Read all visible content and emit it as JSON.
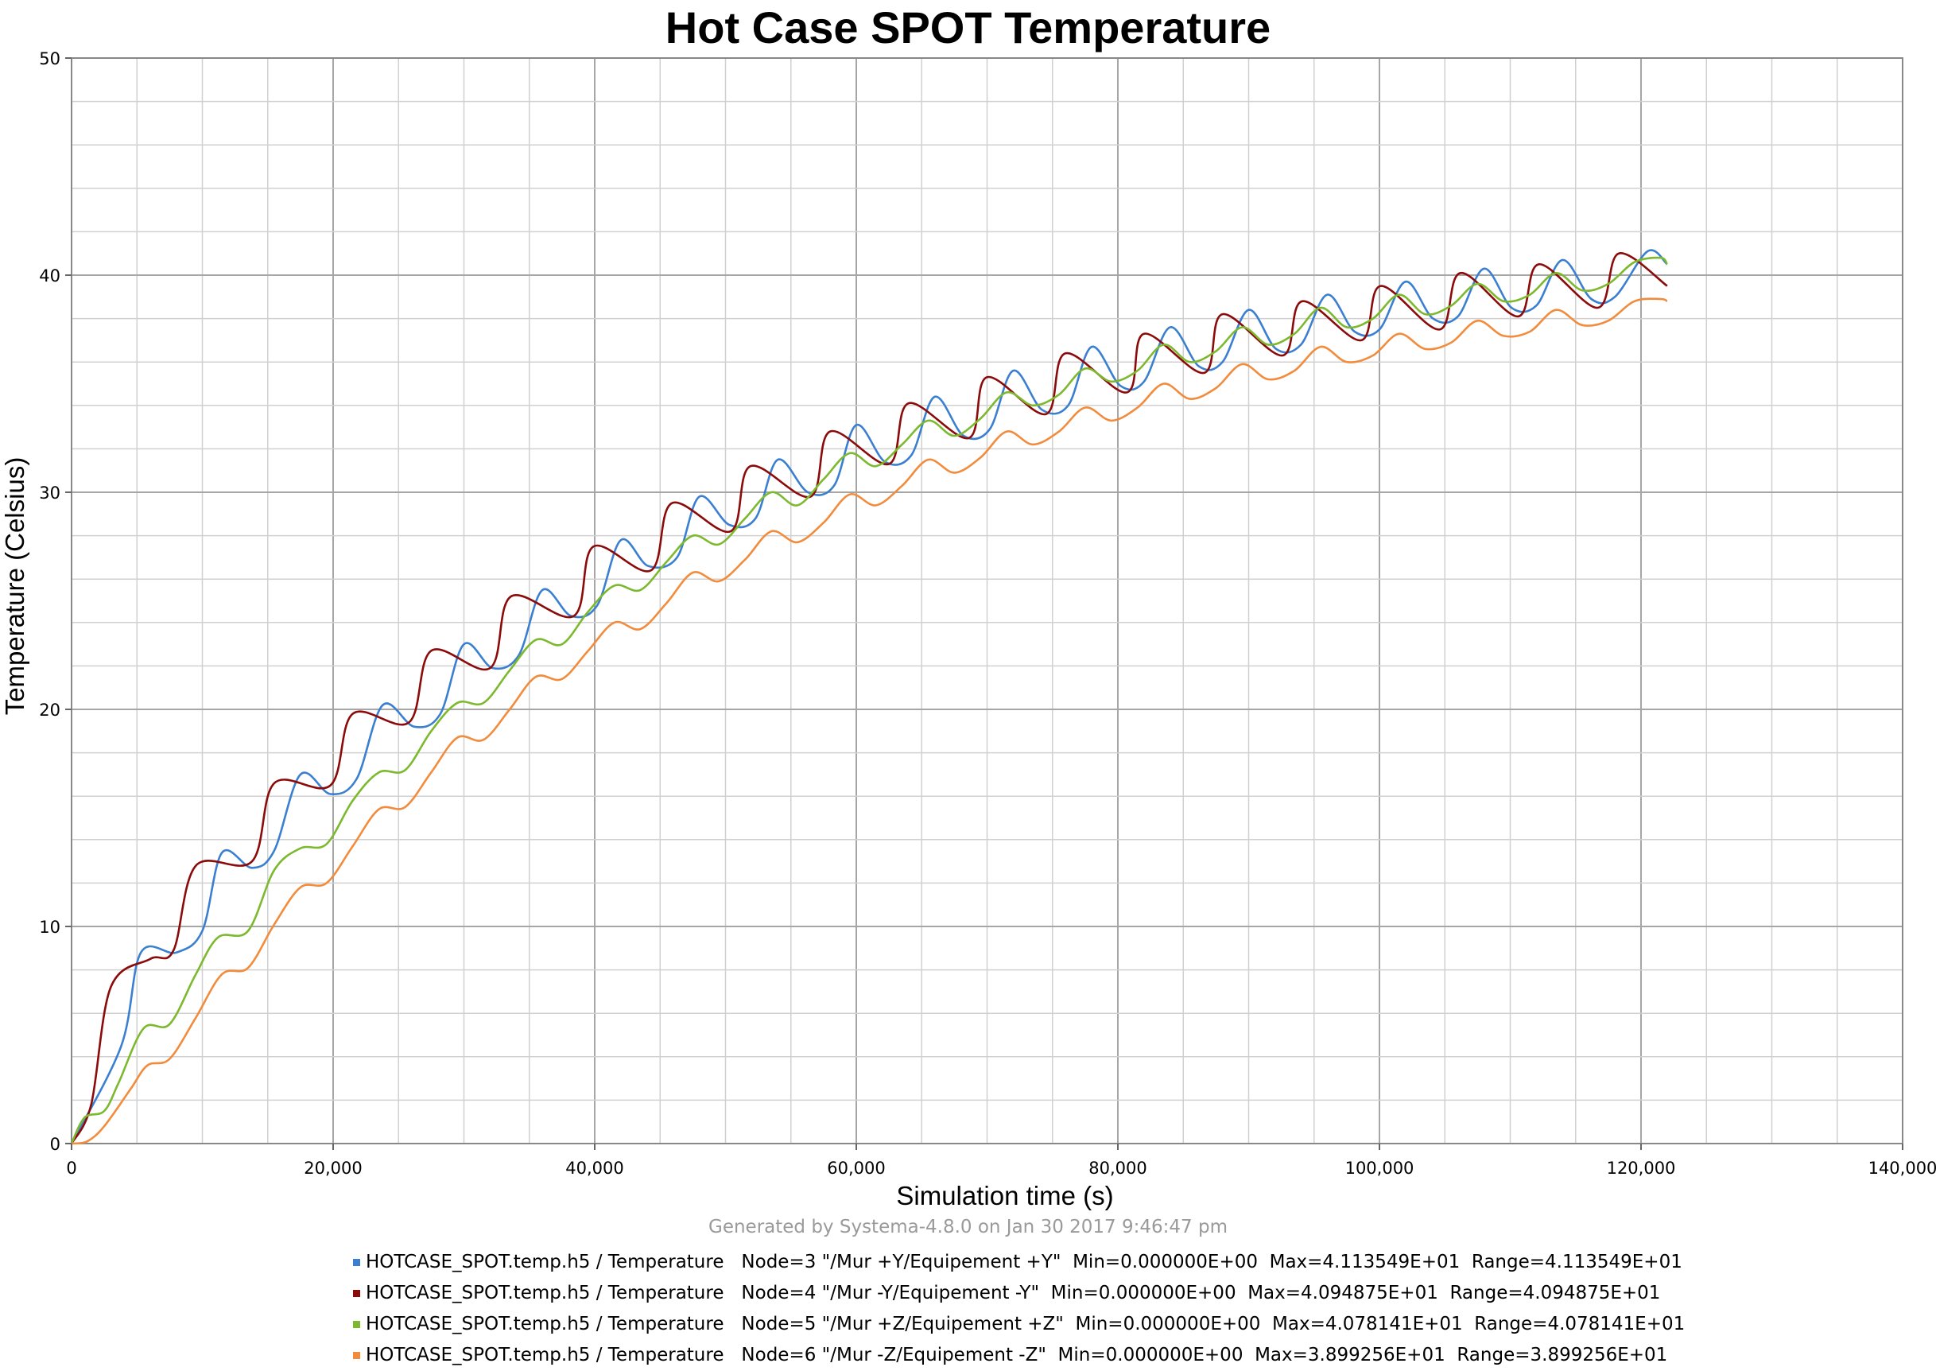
{
  "chart_data": {
    "type": "line",
    "title": "Hot Case SPOT Temperature",
    "xlabel": "Simulation time (s)",
    "ylabel": "Temperature (Celsius)",
    "xlim": [
      0,
      140000
    ],
    "ylim": [
      0,
      50
    ],
    "x_ticks": [
      "0",
      "20,000",
      "40,000",
      "60,000",
      "80,000",
      "100,000",
      "120,000",
      "140,000"
    ],
    "y_ticks": [
      "0",
      "10",
      "20",
      "30",
      "40",
      "50"
    ],
    "grid": true,
    "legend_position": "bottom",
    "series": [
      {
        "name": "HOTCASE_SPOT.temp.h5 / Temperature   Node=3 \"/Mur +Y/Equipement +Y\"  Min=0.000000E+00  Max=4.113549E+01  Range=4.113549E+01",
        "color": "#3a7fd0",
        "points": [
          [
            0,
            0
          ],
          [
            3800,
            4.5
          ],
          [
            5300,
            8.8
          ],
          [
            8000,
            8.8
          ],
          [
            10000,
            9.8
          ],
          [
            11500,
            13.4
          ],
          [
            13800,
            12.7
          ],
          [
            15500,
            13.5
          ],
          [
            17500,
            17.0
          ],
          [
            19800,
            16.1
          ],
          [
            21800,
            16.8
          ],
          [
            23800,
            20.2
          ],
          [
            26200,
            19.2
          ],
          [
            28200,
            19.8
          ],
          [
            30000,
            23.0
          ],
          [
            32200,
            21.9
          ],
          [
            34200,
            22.5
          ],
          [
            36000,
            25.5
          ],
          [
            38200,
            24.3
          ],
          [
            40200,
            24.8
          ],
          [
            42000,
            27.8
          ],
          [
            44100,
            26.6
          ],
          [
            46300,
            27.0
          ],
          [
            48000,
            29.8
          ],
          [
            50300,
            28.5
          ],
          [
            52300,
            28.8
          ],
          [
            54000,
            31.5
          ],
          [
            56300,
            30.0
          ],
          [
            58300,
            30.3
          ],
          [
            60000,
            33.1
          ],
          [
            62200,
            31.4
          ],
          [
            64200,
            31.7
          ],
          [
            66000,
            34.4
          ],
          [
            68200,
            32.6
          ],
          [
            70200,
            32.9
          ],
          [
            72000,
            35.6
          ],
          [
            74200,
            33.8
          ],
          [
            76200,
            34.0
          ],
          [
            78000,
            36.7
          ],
          [
            80200,
            34.9
          ],
          [
            82000,
            35.1
          ],
          [
            84000,
            37.6
          ],
          [
            86200,
            35.8
          ],
          [
            88000,
            36.0
          ],
          [
            90000,
            38.4
          ],
          [
            92100,
            36.6
          ],
          [
            94000,
            36.8
          ],
          [
            96000,
            39.1
          ],
          [
            98100,
            37.4
          ],
          [
            100000,
            37.5
          ],
          [
            102000,
            39.7
          ],
          [
            104100,
            38.0
          ],
          [
            106000,
            38.1
          ],
          [
            108000,
            40.3
          ],
          [
            110100,
            38.5
          ],
          [
            112000,
            38.6
          ],
          [
            114000,
            40.7
          ],
          [
            116200,
            38.9
          ],
          [
            118000,
            39.0
          ],
          [
            120500,
            41.1
          ],
          [
            122000,
            40.5
          ]
        ]
      },
      {
        "name": "HOTCASE_SPOT.temp.h5 / Temperature   Node=4 \"/Mur -Y/Equipement -Y\"  Min=0.000000E+00  Max=4.094875E+01  Range=4.094875E+01",
        "color": "#8b0a0a",
        "points": [
          [
            0,
            0
          ],
          [
            1500,
            1.8
          ],
          [
            3000,
            7.2
          ],
          [
            6000,
            8.5
          ],
          [
            7800,
            8.9
          ],
          [
            9500,
            12.8
          ],
          [
            13800,
            13.0
          ],
          [
            15500,
            16.6
          ],
          [
            19800,
            16.5
          ],
          [
            21500,
            19.8
          ],
          [
            25800,
            19.4
          ],
          [
            27500,
            22.7
          ],
          [
            32000,
            21.9
          ],
          [
            33600,
            25.2
          ],
          [
            38400,
            24.3
          ],
          [
            39900,
            27.5
          ],
          [
            44300,
            26.4
          ],
          [
            45900,
            29.5
          ],
          [
            50400,
            28.2
          ],
          [
            51900,
            31.2
          ],
          [
            56500,
            29.8
          ],
          [
            58000,
            32.8
          ],
          [
            62500,
            31.3
          ],
          [
            64000,
            34.1
          ],
          [
            68600,
            32.5
          ],
          [
            70000,
            35.3
          ],
          [
            74500,
            33.6
          ],
          [
            76000,
            36.4
          ],
          [
            80700,
            34.6
          ],
          [
            82000,
            37.3
          ],
          [
            86600,
            35.5
          ],
          [
            88000,
            38.2
          ],
          [
            92600,
            36.3
          ],
          [
            94100,
            38.8
          ],
          [
            98600,
            37.0
          ],
          [
            100100,
            39.5
          ],
          [
            104600,
            37.5
          ],
          [
            106200,
            40.1
          ],
          [
            110600,
            38.1
          ],
          [
            112200,
            40.5
          ],
          [
            116700,
            38.5
          ],
          [
            118300,
            41.0
          ],
          [
            122000,
            39.5
          ]
        ]
      },
      {
        "name": "HOTCASE_SPOT.temp.h5 / Temperature   Node=5 \"/Mur +Z/Equipement +Z\"  Min=0.000000E+00  Max=4.078141E+01  Range=4.078141E+01",
        "color": "#7cb92e",
        "points": [
          [
            0,
            0
          ],
          [
            1000,
            1.2
          ],
          [
            2500,
            1.5
          ],
          [
            3600,
            2.8
          ],
          [
            5500,
            5.3
          ],
          [
            7500,
            5.5
          ],
          [
            9500,
            7.8
          ],
          [
            11200,
            9.5
          ],
          [
            13500,
            9.8
          ],
          [
            15500,
            12.6
          ],
          [
            17500,
            13.6
          ],
          [
            19500,
            13.8
          ],
          [
            21500,
            15.8
          ],
          [
            23500,
            17.1
          ],
          [
            25500,
            17.2
          ],
          [
            27500,
            19.0
          ],
          [
            29500,
            20.3
          ],
          [
            31500,
            20.3
          ],
          [
            33500,
            21.8
          ],
          [
            35500,
            23.2
          ],
          [
            37500,
            23.0
          ],
          [
            39500,
            24.5
          ],
          [
            41500,
            25.7
          ],
          [
            43500,
            25.5
          ],
          [
            45500,
            26.8
          ],
          [
            47500,
            28.0
          ],
          [
            49500,
            27.6
          ],
          [
            51500,
            28.8
          ],
          [
            53500,
            30.0
          ],
          [
            55500,
            29.4
          ],
          [
            57500,
            30.6
          ],
          [
            59500,
            31.8
          ],
          [
            61500,
            31.2
          ],
          [
            63500,
            32.2
          ],
          [
            65500,
            33.3
          ],
          [
            67500,
            32.6
          ],
          [
            69500,
            33.4
          ],
          [
            71500,
            34.6
          ],
          [
            73500,
            34.0
          ],
          [
            75500,
            34.5
          ],
          [
            77500,
            35.7
          ],
          [
            79500,
            35.1
          ],
          [
            81500,
            35.6
          ],
          [
            83500,
            36.8
          ],
          [
            85500,
            36.0
          ],
          [
            87500,
            36.5
          ],
          [
            89500,
            37.6
          ],
          [
            91500,
            36.8
          ],
          [
            93500,
            37.3
          ],
          [
            95500,
            38.5
          ],
          [
            97500,
            37.6
          ],
          [
            99500,
            38.0
          ],
          [
            101500,
            39.1
          ],
          [
            103500,
            38.2
          ],
          [
            105500,
            38.6
          ],
          [
            107500,
            39.6
          ],
          [
            109500,
            38.8
          ],
          [
            111500,
            39.1
          ],
          [
            113500,
            40.1
          ],
          [
            115500,
            39.3
          ],
          [
            117500,
            39.6
          ],
          [
            119500,
            40.6
          ],
          [
            121500,
            40.8
          ],
          [
            122000,
            40.5
          ]
        ]
      },
      {
        "name": "HOTCASE_SPOT.temp.h5 / Temperature   Node=6 \"/Mur -Z/Equipement -Z\"  Min=0.000000E+00  Max=3.899256E+01  Range=3.899256E+01",
        "color": "#f28c3c",
        "points": [
          [
            0,
            0
          ],
          [
            1200,
            0.1
          ],
          [
            2500,
            0.8
          ],
          [
            4500,
            2.5
          ],
          [
            5800,
            3.6
          ],
          [
            7500,
            3.9
          ],
          [
            9500,
            5.8
          ],
          [
            11500,
            7.8
          ],
          [
            13500,
            8.1
          ],
          [
            15500,
            10.1
          ],
          [
            17500,
            11.8
          ],
          [
            19500,
            12.0
          ],
          [
            21500,
            13.7
          ],
          [
            23500,
            15.4
          ],
          [
            25500,
            15.5
          ],
          [
            27500,
            17.1
          ],
          [
            29500,
            18.7
          ],
          [
            31500,
            18.6
          ],
          [
            33500,
            20.0
          ],
          [
            35500,
            21.5
          ],
          [
            37500,
            21.4
          ],
          [
            39500,
            22.7
          ],
          [
            41500,
            24.0
          ],
          [
            43500,
            23.7
          ],
          [
            45500,
            24.9
          ],
          [
            47500,
            26.3
          ],
          [
            49500,
            25.9
          ],
          [
            51500,
            26.9
          ],
          [
            53500,
            28.2
          ],
          [
            55500,
            27.7
          ],
          [
            57500,
            28.6
          ],
          [
            59500,
            29.9
          ],
          [
            61500,
            29.4
          ],
          [
            63500,
            30.3
          ],
          [
            65500,
            31.5
          ],
          [
            67500,
            30.9
          ],
          [
            69500,
            31.6
          ],
          [
            71500,
            32.8
          ],
          [
            73500,
            32.2
          ],
          [
            75500,
            32.8
          ],
          [
            77500,
            33.9
          ],
          [
            79500,
            33.3
          ],
          [
            81500,
            33.9
          ],
          [
            83500,
            35.0
          ],
          [
            85500,
            34.3
          ],
          [
            87500,
            34.8
          ],
          [
            89500,
            35.9
          ],
          [
            91500,
            35.2
          ],
          [
            93500,
            35.6
          ],
          [
            95500,
            36.7
          ],
          [
            97500,
            36.0
          ],
          [
            99500,
            36.3
          ],
          [
            101500,
            37.3
          ],
          [
            103500,
            36.6
          ],
          [
            105500,
            36.9
          ],
          [
            107500,
            37.9
          ],
          [
            109500,
            37.2
          ],
          [
            111500,
            37.4
          ],
          [
            113500,
            38.4
          ],
          [
            115500,
            37.7
          ],
          [
            117500,
            37.9
          ],
          [
            119500,
            38.8
          ],
          [
            121500,
            38.9
          ],
          [
            122000,
            38.8
          ]
        ]
      }
    ]
  },
  "footer_text": "Generated by Systema-4.8.0 on Jan 30 2017 9:46:47 pm"
}
